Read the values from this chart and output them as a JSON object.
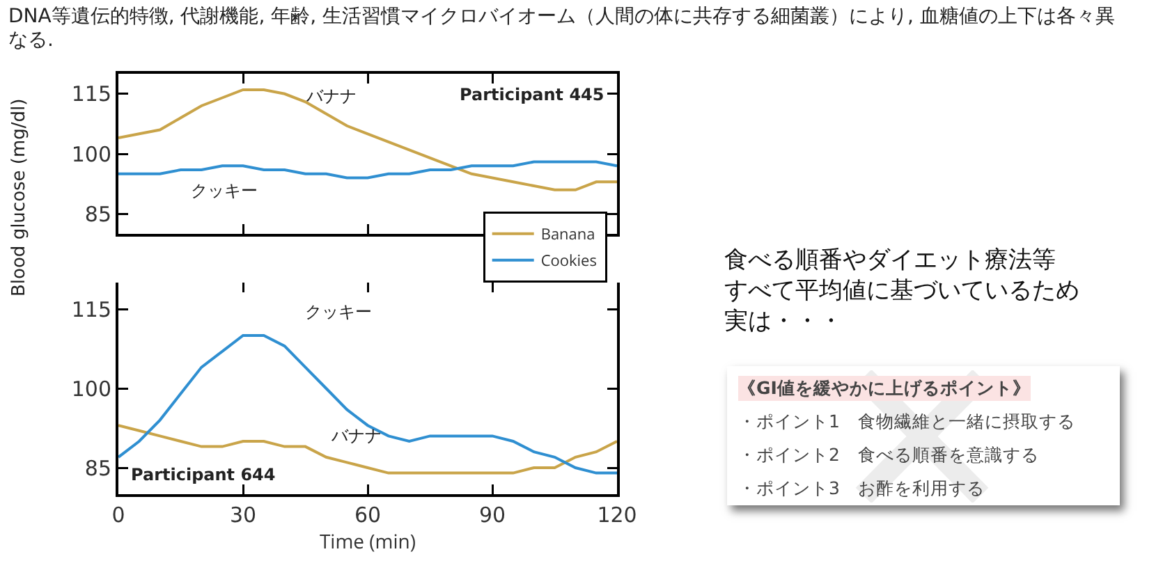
{
  "chart_data": [
    {
      "type": "line",
      "title": "DNA等遺伝的特徴, 代謝機能, 年齢, 生活習慣マイクロバイオーム（人間の体に共存する細菌叢）により, 血糖値の上下は各々異なる.",
      "ylabel": "Blood glucose (mg/dl)",
      "x": [
        0,
        5,
        10,
        15,
        20,
        25,
        30,
        35,
        40,
        45,
        50,
        55,
        60,
        65,
        70,
        75,
        80,
        85,
        90,
        95,
        100,
        105,
        110,
        115,
        120
      ],
      "series": [
        {
          "name": "Banana",
          "color": "#c9a449",
          "values": [
            104,
            105,
            106,
            109,
            112,
            114,
            116,
            116,
            115,
            113,
            110,
            107,
            105,
            103,
            101,
            99,
            97,
            95,
            94,
            93,
            92,
            91,
            91,
            93,
            93
          ]
        },
        {
          "name": "Cookies",
          "color": "#2f8fd1",
          "values": [
            95,
            95,
            95,
            96,
            96,
            97,
            97,
            96,
            96,
            95,
            95,
            94,
            94,
            95,
            95,
            96,
            96,
            97,
            97,
            97,
            98,
            98,
            98,
            98,
            97
          ]
        }
      ],
      "xlim": [
        0,
        120
      ],
      "xticks": [
        0,
        30,
        60,
        90,
        120
      ],
      "ylim": [
        80,
        120
      ],
      "yticks": [
        85,
        100,
        115
      ],
      "tick_labels": "y",
      "grid": false,
      "legend": "bottom right",
      "annotations": [
        "バナナ",
        "クッキー",
        "Participant 445"
      ]
    },
    {
      "type": "line",
      "xlabel": "Time (min)",
      "x": [
        0,
        5,
        10,
        15,
        20,
        25,
        30,
        35,
        40,
        45,
        50,
        55,
        60,
        65,
        70,
        75,
        80,
        85,
        90,
        95,
        100,
        105,
        110,
        115,
        120
      ],
      "series": [
        {
          "color": "#c9a449",
          "values": [
            93,
            92,
            91,
            90,
            89,
            89,
            90,
            90,
            89,
            89,
            87,
            86,
            85,
            84,
            84,
            84,
            84,
            84,
            84,
            84,
            85,
            85,
            87,
            88,
            90
          ]
        },
        {
          "color": "#2f8fd1",
          "values": [
            87,
            90,
            94,
            99,
            104,
            107,
            110,
            110,
            108,
            104,
            100,
            96,
            93,
            91,
            90,
            91,
            91,
            91,
            91,
            90,
            88,
            87,
            85,
            84,
            84
          ]
        }
      ],
      "xlim": [
        0,
        120
      ],
      "xticks": [
        0,
        30,
        60,
        90,
        120
      ],
      "ylim": [
        80,
        120
      ],
      "yticks": [
        85,
        100,
        115
      ],
      "grid": false,
      "legend": false,
      "annotations": [
        "クッキー",
        "バナナ",
        "Participant 644"
      ]
    },
    {
      "type": "other",
      "annotations": [
        "食べる順番やダイエット療法等",
        "すべて平均値に基づいているため",
        "実は・・・",
        "《GI値を緩やかに上げるポイント》",
        "・ポイント1　食物繊維と一緒に摂取する",
        "・ポイント2　食べる順番を意識する",
        "・ポイント3　お酢を利用する"
      ]
    }
  ]
}
